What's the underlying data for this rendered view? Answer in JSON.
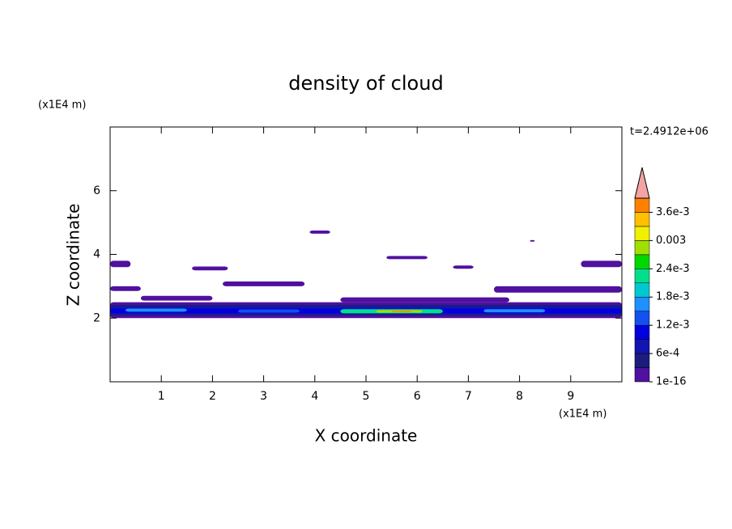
{
  "chart_data": {
    "type": "contour",
    "title": "density of cloud",
    "x_label": "X coordinate",
    "y_label": "Z coordinate",
    "x_unit": "(x1E4 m)",
    "y_unit": "(x1E4 m)",
    "time_label": "t=2.4912e+06",
    "xlim": [
      0,
      10
    ],
    "ylim": [
      0,
      8
    ],
    "xticks": [
      1,
      2,
      3,
      4,
      5,
      6,
      7,
      8,
      9
    ],
    "yticks": [
      2,
      4,
      6
    ],
    "regions": [
      {
        "x": [
          0,
          10
        ],
        "z": [
          2.0,
          2.5
        ],
        "value": 0.0001
      },
      {
        "x": [
          0,
          10
        ],
        "z": [
          2.08,
          2.42
        ],
        "value": 0.0004
      },
      {
        "x": [
          0,
          10
        ],
        "z": [
          2.12,
          2.36
        ],
        "value": 0.0007
      },
      {
        "x": [
          0,
          10
        ],
        "z": [
          2.16,
          2.3
        ],
        "value": 0.001
      },
      {
        "x": [
          0.3,
          1.5
        ],
        "z": [
          2.2,
          2.3
        ],
        "value": 0.0016
      },
      {
        "x": [
          2.5,
          3.7
        ],
        "z": [
          2.17,
          2.27
        ],
        "value": 0.0014
      },
      {
        "x": [
          4.5,
          6.5
        ],
        "z": [
          2.15,
          2.28
        ],
        "value": 0.0022
      },
      {
        "x": [
          5.2,
          6.1
        ],
        "z": [
          2.17,
          2.25
        ],
        "value": 0.0028
      },
      {
        "x": [
          5.5,
          5.9
        ],
        "z": [
          2.19,
          2.23
        ],
        "value": 0.0037
      },
      {
        "x": [
          7.3,
          8.5
        ],
        "z": [
          2.18,
          2.28
        ],
        "value": 0.0015
      },
      {
        "x": [
          0,
          0.6
        ],
        "z": [
          2.85,
          3.0
        ],
        "value": 0.0001
      },
      {
        "x": [
          2.2,
          3.8
        ],
        "z": [
          3.0,
          3.15
        ],
        "value": 0.0001
      },
      {
        "x": [
          7.5,
          10
        ],
        "z": [
          2.8,
          3.0
        ],
        "value": 0.0001
      },
      {
        "x": [
          0.6,
          2.0
        ],
        "z": [
          2.55,
          2.7
        ],
        "value": 0.0001
      },
      {
        "x": [
          4.5,
          7.8
        ],
        "z": [
          2.5,
          2.65
        ],
        "value": 0.0001
      },
      {
        "x": [
          0,
          0.4
        ],
        "z": [
          3.6,
          3.8
        ],
        "value": 0.0001
      },
      {
        "x": [
          9.2,
          10
        ],
        "z": [
          3.6,
          3.8
        ],
        "value": 0.0001
      },
      {
        "x": [
          1.6,
          2.3
        ],
        "z": [
          3.5,
          3.62
        ],
        "value": 0.0001
      },
      {
        "x": [
          3.9,
          4.3
        ],
        "z": [
          4.65,
          4.75
        ],
        "value": 0.0001
      },
      {
        "x": [
          5.4,
          6.2
        ],
        "z": [
          3.85,
          3.95
        ],
        "value": 0.0001
      },
      {
        "x": [
          8.2,
          8.3
        ],
        "z": [
          4.4,
          4.45
        ],
        "value": 0.0001
      },
      {
        "x": [
          6.7,
          7.1
        ],
        "z": [
          3.55,
          3.65
        ],
        "value": 0.0001
      }
    ],
    "colorbar": {
      "lim": [
        0,
        0.0039
      ],
      "levels": [
        0,
        0.0003,
        0.0006,
        0.0009,
        0.0012,
        0.0015,
        0.0018,
        0.0021,
        0.0024,
        0.0027,
        0.003,
        0.0033,
        0.0036,
        0.0039
      ],
      "colors": [
        "#5010a0",
        "#1c1c80",
        "#1414b0",
        "#0000e0",
        "#1450f0",
        "#1e90ff",
        "#00c8d0",
        "#00e08c",
        "#00d800",
        "#a0e000",
        "#f0f000",
        "#ffc000",
        "#ff8000",
        "#ff3000"
      ],
      "extend_color": "#f4a4a4",
      "ticks": [
        {
          "value": 1e-16,
          "label": "1e-16"
        },
        {
          "value": 0.0006,
          "label": "6e-4"
        },
        {
          "value": 0.0012,
          "label": "1.2e-3"
        },
        {
          "value": 0.0018,
          "label": "1.8e-3"
        },
        {
          "value": 0.0024,
          "label": "2.4e-3"
        },
        0.003,
        {
          "value": 0.0036,
          "label": "3.6e-3"
        }
      ]
    }
  }
}
